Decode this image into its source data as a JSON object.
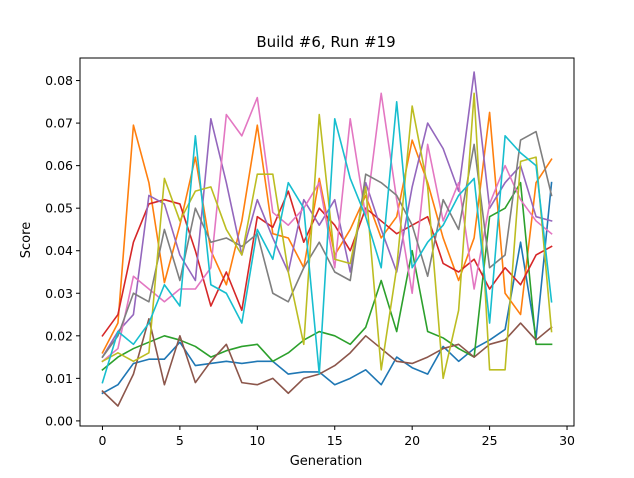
{
  "chart_data": {
    "type": "line",
    "title": "Build #6, Run #19",
    "xlabel": "Generation",
    "ylabel": "Score",
    "xlim": [
      -1.45,
      30.45
    ],
    "ylim": [
      -0.0012,
      0.0853
    ],
    "xticks": [
      0,
      5,
      10,
      15,
      20,
      25,
      30
    ],
    "xtick_labels": [
      "0",
      "5",
      "10",
      "15",
      "20",
      "25",
      "30"
    ],
    "yticks": [
      0.0,
      0.01,
      0.02,
      0.03,
      0.04,
      0.05,
      0.06,
      0.07,
      0.08
    ],
    "ytick_labels": [
      "0.00",
      "0.01",
      "0.02",
      "0.03",
      "0.04",
      "0.05",
      "0.06",
      "0.07",
      "0.08"
    ],
    "grid": false,
    "legend": "none",
    "x": [
      0,
      1,
      2,
      3,
      4,
      5,
      6,
      7,
      8,
      9,
      10,
      11,
      12,
      13,
      14,
      15,
      16,
      17,
      18,
      19,
      20,
      21,
      22,
      23,
      24,
      25,
      26,
      27,
      28,
      29
    ],
    "series": [
      {
        "color": "#1f77b4",
        "values": [
          0.0065,
          0.0085,
          0.0135,
          0.0145,
          0.0145,
          0.0185,
          0.013,
          0.0135,
          0.014,
          0.0135,
          0.014,
          0.014,
          0.011,
          0.0115,
          0.0115,
          0.0085,
          0.01,
          0.012,
          0.0085,
          0.015,
          0.0125,
          0.011,
          0.0175,
          0.014,
          0.017,
          0.019,
          0.0215,
          0.042,
          0.0195,
          0.056
        ]
      },
      {
        "color": "#ff7f0e",
        "values": [
          0.016,
          0.023,
          0.0695,
          0.056,
          0.0325,
          0.046,
          0.062,
          0.04,
          0.032,
          0.047,
          0.0695,
          0.044,
          0.043,
          0.036,
          0.057,
          0.039,
          0.045,
          0.053,
          0.043,
          0.048,
          0.066,
          0.056,
          0.043,
          0.033,
          0.043,
          0.0725,
          0.03,
          0.025,
          0.056,
          0.0615
        ]
      },
      {
        "color": "#2ca02c",
        "values": [
          0.012,
          0.015,
          0.017,
          0.0185,
          0.02,
          0.019,
          0.0175,
          0.015,
          0.0165,
          0.0175,
          0.018,
          0.014,
          0.016,
          0.019,
          0.021,
          0.02,
          0.018,
          0.022,
          0.033,
          0.021,
          0.04,
          0.021,
          0.0195,
          0.017,
          0.015,
          0.048,
          0.05,
          0.056,
          0.018,
          0.018
        ]
      },
      {
        "color": "#d62728",
        "values": [
          0.02,
          0.025,
          0.042,
          0.051,
          0.052,
          0.051,
          0.04,
          0.027,
          0.035,
          0.026,
          0.048,
          0.0455,
          0.054,
          0.042,
          0.05,
          0.046,
          0.04,
          0.05,
          0.047,
          0.044,
          0.046,
          0.048,
          0.037,
          0.035,
          0.038,
          0.031,
          0.036,
          0.032,
          0.039,
          0.041
        ]
      },
      {
        "color": "#9467bd",
        "values": [
          0.015,
          0.021,
          0.025,
          0.053,
          0.051,
          0.039,
          0.033,
          0.071,
          0.056,
          0.039,
          0.052,
          0.043,
          0.035,
          0.052,
          0.046,
          0.052,
          0.035,
          0.056,
          0.045,
          0.035,
          0.055,
          0.07,
          0.064,
          0.054,
          0.082,
          0.05,
          0.056,
          0.06,
          0.048,
          0.047
        ]
      },
      {
        "color": "#8c564b",
        "values": [
          0.007,
          0.0035,
          0.011,
          0.024,
          0.0085,
          0.02,
          0.009,
          0.014,
          0.018,
          0.009,
          0.0085,
          0.01,
          0.0065,
          0.01,
          0.011,
          0.013,
          0.016,
          0.02,
          0.017,
          0.014,
          0.0135,
          0.015,
          0.017,
          0.018,
          0.015,
          0.018,
          0.019,
          0.023,
          0.019,
          0.022
        ]
      },
      {
        "color": "#e377c2",
        "values": [
          0.014,
          0.017,
          0.034,
          0.031,
          0.028,
          0.031,
          0.031,
          0.036,
          0.072,
          0.067,
          0.076,
          0.049,
          0.046,
          0.05,
          0.056,
          0.036,
          0.071,
          0.048,
          0.077,
          0.052,
          0.03,
          0.065,
          0.047,
          0.056,
          0.031,
          0.051,
          0.06,
          0.052,
          0.047,
          0.044
        ]
      },
      {
        "color": "#7f7f7f",
        "values": [
          0.015,
          0.02,
          0.03,
          0.028,
          0.045,
          0.033,
          0.05,
          0.042,
          0.043,
          0.041,
          0.044,
          0.03,
          0.028,
          0.036,
          0.042,
          0.035,
          0.033,
          0.058,
          0.056,
          0.053,
          0.046,
          0.034,
          0.052,
          0.045,
          0.065,
          0.036,
          0.039,
          0.066,
          0.068,
          0.053
        ]
      },
      {
        "color": "#bcbd22",
        "values": [
          0.014,
          0.016,
          0.014,
          0.016,
          0.057,
          0.047,
          0.054,
          0.055,
          0.045,
          0.039,
          0.058,
          0.058,
          0.035,
          0.018,
          0.072,
          0.038,
          0.037,
          0.055,
          0.012,
          0.036,
          0.074,
          0.055,
          0.01,
          0.026,
          0.077,
          0.012,
          0.012,
          0.061,
          0.062,
          0.021
        ]
      },
      {
        "color": "#17becf",
        "values": [
          0.009,
          0.021,
          0.018,
          0.023,
          0.032,
          0.027,
          0.067,
          0.032,
          0.03,
          0.023,
          0.045,
          0.038,
          0.056,
          0.05,
          0.011,
          0.071,
          0.057,
          0.048,
          0.036,
          0.075,
          0.036,
          0.042,
          0.046,
          0.053,
          0.057,
          0.023,
          0.067,
          0.063,
          0.06,
          0.028
        ]
      }
    ]
  }
}
